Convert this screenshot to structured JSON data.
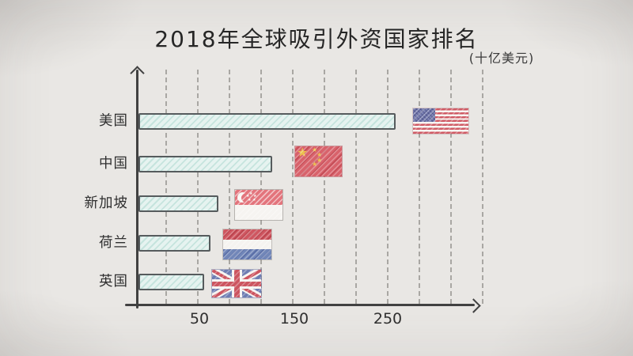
{
  "header": {
    "title": "2018年全球吸引外资国家排名",
    "unit_label": "(十亿美元)"
  },
  "chart_data": {
    "type": "bar",
    "orientation": "horizontal",
    "title": "2018年全球吸引外资国家排名",
    "unit": "十亿美元",
    "categories": [
      "美国",
      "中国",
      "新加坡",
      "荷兰",
      "英国"
    ],
    "values": [
      250,
      130,
      78,
      70,
      64
    ],
    "xticks": [
      "50",
      "150",
      "250"
    ],
    "xlim": [
      0,
      330
    ],
    "grid": "dashed-vertical-gridlines",
    "legend": "none",
    "bar_fill_color": "#e6f3f0",
    "bar_border_color": "#565b5d",
    "axis_color": "#414141",
    "background_color": "#e9e7e4",
    "row_icons": [
      "usa-flag-icon",
      "china-flag-icon",
      "singapore-flag-icon",
      "netherlands-flag-icon",
      "uk-flag-icon"
    ]
  }
}
